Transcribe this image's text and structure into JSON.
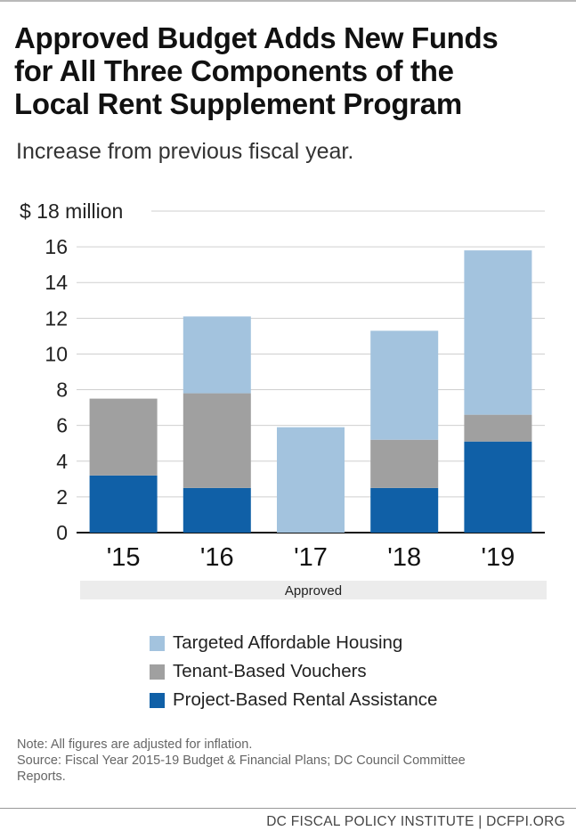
{
  "title_lines": [
    "Approved Budget Adds New Funds",
    "for All Three Components of the",
    "Local Rent Supplement Program"
  ],
  "subtitle": "Increase from previous fiscal year.",
  "chart_data": {
    "type": "bar",
    "stacked": true,
    "categories": [
      "'15",
      "'16",
      "'17",
      "'18",
      "'19"
    ],
    "category_group_label": "Approved",
    "series": [
      {
        "name": "Project-Based Rental Assistance",
        "color": "#1060a7",
        "values": [
          3.2,
          2.5,
          0,
          2.5,
          5.1
        ]
      },
      {
        "name": "Tenant-Based Vouchers",
        "color": "#a0a0a0",
        "values": [
          4.3,
          5.3,
          0,
          2.7,
          1.5
        ]
      },
      {
        "name": "Targeted Affordable Housing",
        "color": "#a3c3de",
        "values": [
          0,
          4.3,
          5.9,
          6.1,
          9.2
        ]
      }
    ],
    "ylim": [
      0,
      18
    ],
    "yticks": [
      0,
      2,
      4,
      6,
      8,
      10,
      12,
      14,
      16,
      18
    ],
    "ytick_labels": [
      "0",
      "2",
      "4",
      "6",
      "8",
      "10",
      "12",
      "14",
      "16",
      "$ 18 million"
    ],
    "grid": true,
    "legend_placement": "bottom"
  },
  "legend": [
    {
      "label": "Targeted Affordable Housing",
      "color": "#a3c3de"
    },
    {
      "label": "Tenant-Based Vouchers",
      "color": "#a0a0a0"
    },
    {
      "label": "Project-Based Rental Assistance",
      "color": "#1060a7"
    }
  ],
  "note_lines": [
    "Note: All figures are adjusted for inflation.",
    "Source: Fiscal Year 2015-19 Budget & Financial Plans; DC Council Committee",
    "Reports."
  ],
  "footer": "DC FISCAL POLICY INSTITUTE | DCFPI.ORG"
}
